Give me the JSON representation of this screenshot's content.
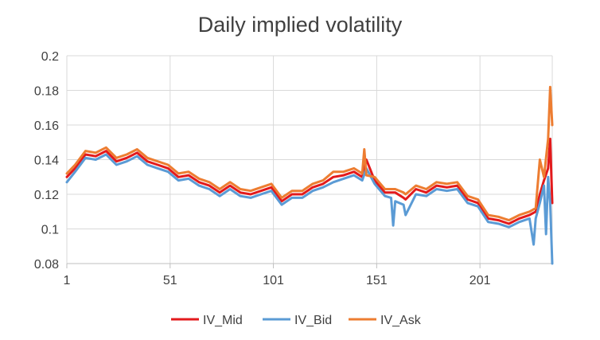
{
  "chart_data": {
    "type": "line",
    "title": "Daily implied volatility",
    "xlabel": "",
    "ylabel": "",
    "x_range": [
      1,
      236
    ],
    "ylim": [
      0.08,
      0.2
    ],
    "x_ticks": [
      "1",
      "51",
      "101",
      "151",
      "201"
    ],
    "y_ticks": [
      "0.08",
      "0.1",
      "0.12",
      "0.14",
      "0.16",
      "0.18",
      "0.2"
    ],
    "grid": true,
    "legend_position": "bottom",
    "series": [
      {
        "name": "IV_Mid",
        "color": "#e31a1c",
        "x": [
          1,
          5,
          10,
          15,
          20,
          25,
          30,
          35,
          40,
          45,
          50,
          55,
          60,
          65,
          70,
          75,
          80,
          85,
          90,
          95,
          100,
          105,
          110,
          115,
          120,
          125,
          130,
          135,
          140,
          144,
          146,
          150,
          155,
          160,
          164,
          165,
          170,
          175,
          180,
          185,
          190,
          195,
          200,
          205,
          210,
          215,
          220,
          225,
          228,
          230,
          232,
          234,
          235,
          236
        ],
        "values": [
          0.13,
          0.135,
          0.143,
          0.142,
          0.145,
          0.139,
          0.141,
          0.144,
          0.139,
          0.137,
          0.135,
          0.13,
          0.131,
          0.127,
          0.125,
          0.121,
          0.125,
          0.121,
          0.12,
          0.122,
          0.124,
          0.116,
          0.12,
          0.12,
          0.124,
          0.126,
          0.13,
          0.131,
          0.133,
          0.13,
          0.14,
          0.128,
          0.121,
          0.121,
          0.118,
          0.117,
          0.123,
          0.121,
          0.125,
          0.124,
          0.125,
          0.117,
          0.115,
          0.106,
          0.105,
          0.103,
          0.106,
          0.108,
          0.11,
          0.12,
          0.128,
          0.135,
          0.152,
          0.115
        ]
      },
      {
        "name": "IV_Bid",
        "color": "#5b9bd5",
        "x": [
          1,
          5,
          10,
          15,
          20,
          25,
          30,
          35,
          40,
          45,
          50,
          55,
          60,
          65,
          70,
          75,
          80,
          85,
          90,
          95,
          100,
          105,
          110,
          115,
          120,
          125,
          130,
          135,
          140,
          144,
          146,
          150,
          155,
          158,
          159,
          160,
          164,
          165,
          170,
          175,
          180,
          185,
          190,
          195,
          200,
          205,
          210,
          215,
          220,
          225,
          227,
          228,
          230,
          232,
          233,
          234,
          235,
          236
        ],
        "values": [
          0.127,
          0.133,
          0.141,
          0.14,
          0.143,
          0.137,
          0.139,
          0.142,
          0.137,
          0.135,
          0.133,
          0.128,
          0.129,
          0.125,
          0.123,
          0.119,
          0.123,
          0.119,
          0.118,
          0.12,
          0.122,
          0.114,
          0.118,
          0.118,
          0.122,
          0.124,
          0.127,
          0.129,
          0.131,
          0.128,
          0.135,
          0.126,
          0.119,
          0.118,
          0.102,
          0.116,
          0.114,
          0.108,
          0.12,
          0.119,
          0.123,
          0.122,
          0.123,
          0.115,
          0.113,
          0.104,
          0.103,
          0.101,
          0.104,
          0.106,
          0.091,
          0.106,
          0.115,
          0.125,
          0.097,
          0.13,
          0.115,
          0.08
        ]
      },
      {
        "name": "IV_Ask",
        "color": "#ed7d31",
        "x": [
          1,
          5,
          10,
          15,
          20,
          25,
          30,
          35,
          40,
          45,
          50,
          55,
          60,
          65,
          70,
          75,
          80,
          85,
          90,
          95,
          100,
          105,
          110,
          115,
          120,
          125,
          130,
          135,
          140,
          144,
          145,
          146,
          150,
          155,
          160,
          164,
          165,
          170,
          175,
          180,
          185,
          190,
          195,
          200,
          205,
          210,
          215,
          220,
          225,
          228,
          230,
          232,
          234,
          235,
          236
        ],
        "values": [
          0.132,
          0.137,
          0.145,
          0.144,
          0.147,
          0.141,
          0.143,
          0.146,
          0.141,
          0.139,
          0.137,
          0.132,
          0.133,
          0.129,
          0.127,
          0.123,
          0.127,
          0.123,
          0.122,
          0.124,
          0.126,
          0.118,
          0.122,
          0.122,
          0.126,
          0.128,
          0.133,
          0.133,
          0.135,
          0.132,
          0.146,
          0.131,
          0.13,
          0.123,
          0.123,
          0.121,
          0.12,
          0.125,
          0.123,
          0.127,
          0.126,
          0.127,
          0.119,
          0.117,
          0.108,
          0.107,
          0.105,
          0.108,
          0.11,
          0.112,
          0.14,
          0.13,
          0.152,
          0.182,
          0.16
        ]
      }
    ]
  }
}
